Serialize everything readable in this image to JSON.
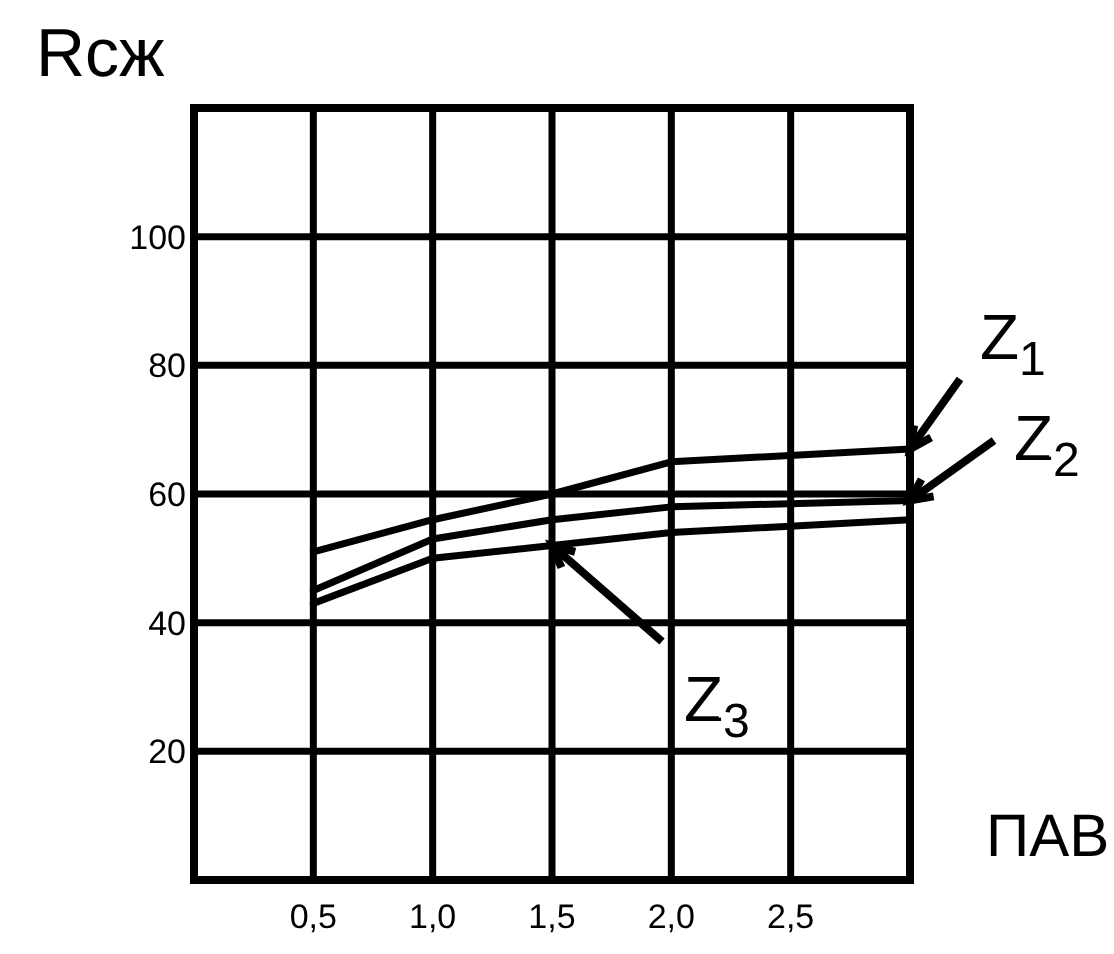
{
  "chart_data": {
    "type": "line",
    "ylabel": "Rcж",
    "xlabel": "ПАВ",
    "x": [
      0.5,
      1.0,
      1.5,
      2.0,
      3.0
    ],
    "series": [
      {
        "name": "Z$_{1}$",
        "color": "#000000",
        "values": [
          51,
          56,
          60,
          65,
          67
        ]
      },
      {
        "name": "Z$_{2}$",
        "color": "#000000",
        "values": [
          45,
          53,
          56,
          58,
          59
        ]
      },
      {
        "name": "Z$_{3}$",
        "color": "#000000",
        "values": [
          43,
          50,
          52,
          54,
          56
        ]
      }
    ],
    "xlim": [
      0,
      3
    ],
    "ylim": [
      0,
      120
    ],
    "xticks": [
      {
        "value": 0.5,
        "label": "0,5"
      },
      {
        "value": 1.0,
        "label": "1,0"
      },
      {
        "value": 1.5,
        "label": "1,5"
      },
      {
        "value": 2.0,
        "label": "2,0"
      },
      {
        "value": 2.5,
        "label": "2,5"
      }
    ],
    "yticks": [
      20,
      40,
      60,
      80,
      100
    ],
    "grid": true,
    "legend": "right",
    "marker": "none",
    "line_style": "solid"
  }
}
